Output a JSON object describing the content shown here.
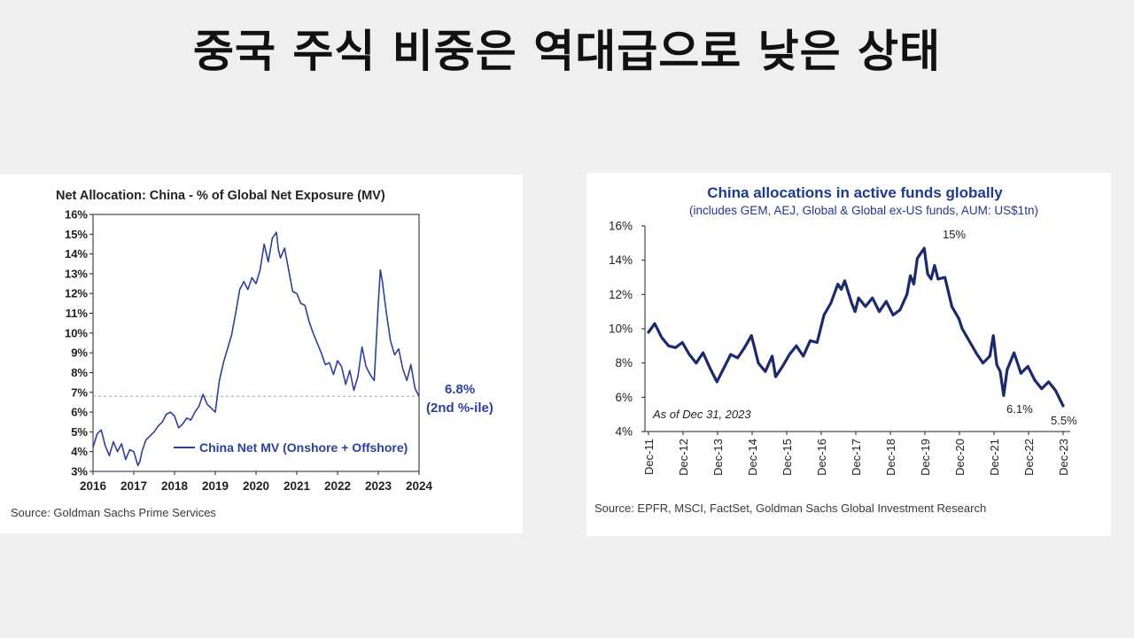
{
  "page": {
    "headline": "중국 주식 비중은 역대급으로 낮은 상태"
  },
  "colors": {
    "left_line": "#2f3f9c",
    "right_line": "#1a2a6c",
    "right_title": "#1f3a8a",
    "axis": "#222222",
    "reference_line": "#9aa3c8"
  },
  "left": {
    "source": "Source: Goldman Sachs Prime Services",
    "annotation_value": "6.8%",
    "annotation_note": "(2nd %-ile)"
  },
  "right": {
    "source": "Source: EPFR, MSCI, FactSet, Goldman Sachs Global Investment Research",
    "as_of": "As of Dec 31, 2023",
    "label_peak": "15%",
    "label_low1": "6.1%",
    "label_last": "5.5%"
  },
  "chart_data": [
    {
      "type": "line",
      "title": "Net Allocation:  China - % of Global Net Exposure (MV)",
      "xlabel": "",
      "ylabel": "",
      "xlim": [
        2016,
        2024
      ],
      "ylim": [
        3,
        16
      ],
      "x_ticks": [
        "2016",
        "2017",
        "2018",
        "2019",
        "2020",
        "2021",
        "2022",
        "2023",
        "2024"
      ],
      "y_ticks": [
        "3%",
        "4%",
        "5%",
        "6%",
        "7%",
        "8%",
        "9%",
        "10%",
        "11%",
        "12%",
        "13%",
        "14%",
        "15%",
        "16%"
      ],
      "grid": false,
      "reference_line": {
        "y": 6.8,
        "style": "dashed"
      },
      "legend": {
        "position": "bottom-center"
      },
      "series": [
        {
          "name": "China Net MV (Onshore + Offshore)",
          "x": [
            2016.0,
            2016.1,
            2016.2,
            2016.3,
            2016.4,
            2016.5,
            2016.6,
            2016.7,
            2016.8,
            2016.9,
            2017.0,
            2017.1,
            2017.15,
            2017.2,
            2017.3,
            2017.4,
            2017.5,
            2017.6,
            2017.7,
            2017.8,
            2017.9,
            2018.0,
            2018.1,
            2018.2,
            2018.3,
            2018.4,
            2018.5,
            2018.6,
            2018.7,
            2018.8,
            2018.9,
            2019.0,
            2019.1,
            2019.2,
            2019.3,
            2019.4,
            2019.5,
            2019.6,
            2019.7,
            2019.8,
            2019.9,
            2020.0,
            2020.1,
            2020.2,
            2020.3,
            2020.4,
            2020.5,
            2020.55,
            2020.6,
            2020.7,
            2020.8,
            2020.9,
            2021.0,
            2021.1,
            2021.2,
            2021.3,
            2021.4,
            2021.5,
            2021.6,
            2021.7,
            2021.8,
            2021.9,
            2022.0,
            2022.1,
            2022.2,
            2022.3,
            2022.4,
            2022.5,
            2022.6,
            2022.7,
            2022.8,
            2022.9,
            2023.0,
            2023.05,
            2023.1,
            2023.2,
            2023.3,
            2023.4,
            2023.5,
            2023.6,
            2023.7,
            2023.8,
            2023.9,
            2024.0
          ],
          "y": [
            4.2,
            4.9,
            5.1,
            4.3,
            3.8,
            4.5,
            4.0,
            4.4,
            3.6,
            4.1,
            4.0,
            3.3,
            3.5,
            4.0,
            4.6,
            4.8,
            5.0,
            5.3,
            5.5,
            5.9,
            6.0,
            5.8,
            5.2,
            5.4,
            5.7,
            5.6,
            6.0,
            6.3,
            6.9,
            6.4,
            6.2,
            6.0,
            7.6,
            8.5,
            9.2,
            9.9,
            11.0,
            12.2,
            12.6,
            12.2,
            12.8,
            12.5,
            13.2,
            14.5,
            13.6,
            14.8,
            15.1,
            14.2,
            13.8,
            14.3,
            13.2,
            12.1,
            12.0,
            11.5,
            11.4,
            10.6,
            10.0,
            9.5,
            9.0,
            8.4,
            8.5,
            7.9,
            8.6,
            8.3,
            7.4,
            8.1,
            7.1,
            7.8,
            9.3,
            8.3,
            7.9,
            7.6,
            11.5,
            13.2,
            12.6,
            11.0,
            9.6,
            8.9,
            9.2,
            8.2,
            7.6,
            8.4,
            7.2,
            6.8
          ]
        }
      ]
    },
    {
      "type": "line",
      "title": "China allocations in active funds globally",
      "subtitle": "(includes GEM, AEJ, Global & Global ex-US funds, AUM: US$1tn)",
      "xlabel": "",
      "ylabel": "",
      "xlim": [
        2011.92,
        2023.92
      ],
      "ylim": [
        4,
        16
      ],
      "x_ticks": [
        "Dec-11",
        "Dec-12",
        "Dec-13",
        "Dec-14",
        "Dec-15",
        "Dec-16",
        "Dec-17",
        "Dec-18",
        "Dec-19",
        "Dec-20",
        "Dec-21",
        "Dec-22",
        "Dec-23"
      ],
      "y_ticks": [
        "4%",
        "6%",
        "8%",
        "10%",
        "12%",
        "14%",
        "16%"
      ],
      "grid": false,
      "series": [
        {
          "x": [
            2011.92,
            2012.1,
            2012.3,
            2012.5,
            2012.7,
            2012.9,
            2013.1,
            2013.3,
            2013.5,
            2013.7,
            2013.9,
            2014.1,
            2014.3,
            2014.5,
            2014.6,
            2014.7,
            2014.9,
            2015.1,
            2015.3,
            2015.5,
            2015.6,
            2015.8,
            2016.0,
            2016.2,
            2016.4,
            2016.6,
            2016.8,
            2017.0,
            2017.2,
            2017.4,
            2017.5,
            2017.6,
            2017.8,
            2017.9,
            2018.0,
            2018.2,
            2018.4,
            2018.6,
            2018.8,
            2019.0,
            2019.2,
            2019.4,
            2019.5,
            2019.6,
            2019.7,
            2019.9,
            2020.0,
            2020.1,
            2020.2,
            2020.3,
            2020.5,
            2020.7,
            2020.9,
            2021.0,
            2021.2,
            2021.4,
            2021.6,
            2021.8,
            2021.9,
            2022.0,
            2022.1,
            2022.2,
            2022.3,
            2022.5,
            2022.7,
            2022.9,
            2023.1,
            2023.3,
            2023.5,
            2023.7,
            2023.92
          ],
          "y": [
            9.8,
            10.3,
            9.5,
            9.0,
            8.9,
            9.2,
            8.5,
            8.0,
            8.6,
            7.7,
            6.9,
            7.7,
            8.5,
            8.3,
            8.6,
            8.9,
            9.6,
            8.0,
            7.5,
            8.4,
            7.2,
            7.8,
            8.5,
            9.0,
            8.4,
            9.3,
            9.2,
            10.8,
            11.5,
            12.6,
            12.3,
            12.8,
            11.5,
            11.0,
            11.8,
            11.3,
            11.8,
            11.0,
            11.6,
            10.8,
            11.1,
            12.0,
            13.1,
            12.6,
            14.1,
            14.7,
            13.2,
            12.9,
            13.7,
            12.9,
            13.0,
            11.3,
            10.6,
            10.0,
            9.3,
            8.6,
            8.0,
            8.4,
            9.6,
            7.9,
            7.5,
            6.1,
            7.6,
            8.6,
            7.4,
            7.8,
            7.0,
            6.5,
            6.9,
            6.4,
            5.5
          ]
        }
      ]
    }
  ]
}
